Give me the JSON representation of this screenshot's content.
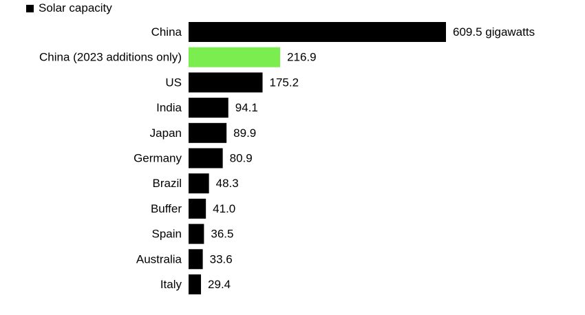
{
  "chart_data": {
    "type": "bar",
    "orientation": "horizontal",
    "legend": {
      "label": "Solar capacity",
      "color": "#000000",
      "placement": "top-left"
    },
    "categories": [
      "China",
      "China (2023 additions only)",
      "US",
      "India",
      "Japan",
      "Germany",
      "Brazil",
      "Buffer",
      "Spain",
      "Australia",
      "Italy"
    ],
    "values": [
      609.5,
      216.9,
      175.2,
      94.1,
      89.9,
      80.9,
      48.3,
      41.0,
      36.5,
      33.6,
      29.4
    ],
    "value_labels": [
      "609.5 gigawatts",
      "216.9",
      "175.2",
      "94.1",
      "89.9",
      "80.9",
      "48.3",
      "41.0",
      "36.5",
      "33.6",
      "29.4"
    ],
    "bar_colors": [
      "#000000",
      "#7ced4e",
      "#000000",
      "#000000",
      "#000000",
      "#000000",
      "#000000",
      "#000000",
      "#000000",
      "#000000",
      "#000000"
    ],
    "unit": "gigawatts",
    "xlim": [
      0,
      609.5
    ],
    "grid": false,
    "title": "",
    "xlabel": "",
    "ylabel": ""
  }
}
